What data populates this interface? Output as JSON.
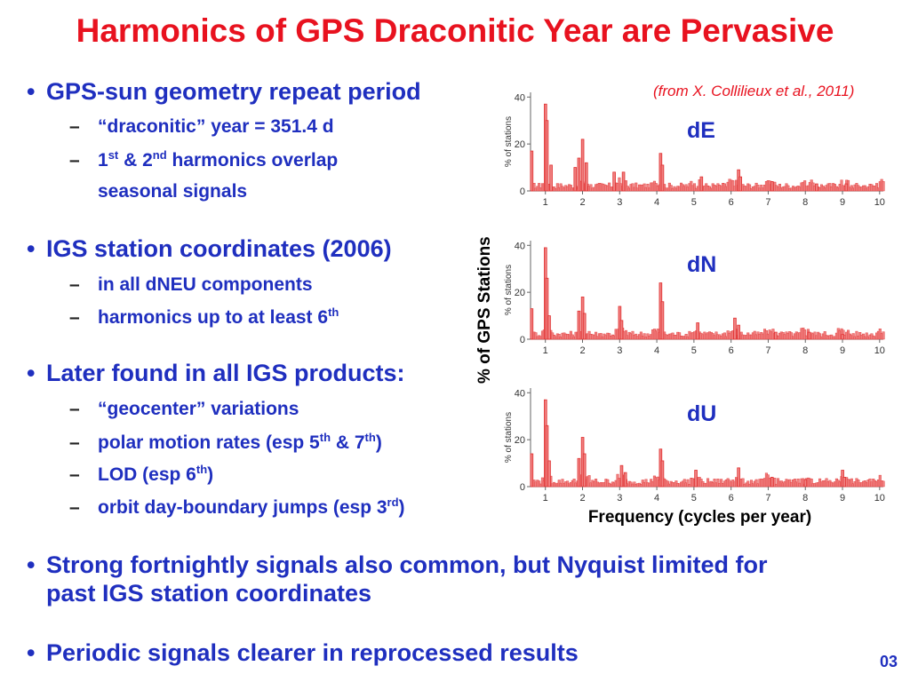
{
  "title": "Harmonics of GPS Draconitic Year are Pervasive",
  "bullets": {
    "b1": "GPS-sun geometry repeat period",
    "b1_s1": "“draconitic” year = 351.4 d",
    "b1_s2_a": "1",
    "b1_s2_sup1": "st",
    "b1_s2_b": " & 2",
    "b1_s2_sup2": "nd",
    "b1_s2_c": " harmonics overlap",
    "b1_s2_cont": "seasonal signals",
    "b2": "IGS station coordinates (2006)",
    "b2_s1": "in all dNEU components",
    "b2_s2_a": "harmonics up to at least 6",
    "b2_s2_sup": "th",
    "b3": "Later found in all IGS products:",
    "b3_s1": "“geocenter” variations",
    "b3_s2_a": "polar motion rates (esp 5",
    "b3_s2_sup1": "th",
    "b3_s2_b": " & 7",
    "b3_s2_sup2": "th",
    "b3_s2_c": ")",
    "b3_s3_a": "LOD (esp 6",
    "b3_s3_sup": "th",
    "b3_s3_b": ")",
    "b3_s4_a": "orbit day-boundary jumps (esp 3",
    "b3_s4_sup": "rd",
    "b3_s4_b": ")",
    "b4_l1": "Strong fortnightly signals also common, but Nyquist limited for",
    "b4_l2": "past IGS station coordinates",
    "b5": "Periodic signals clearer in reprocessed results"
  },
  "credit": "(from X. Collilieux et al., 2011)",
  "page_number": "03",
  "colors": {
    "title": "#e8121f",
    "text": "#1f2fbf",
    "bars": "#f08080",
    "bar_outline": "#e03030"
  },
  "chart_data": [
    {
      "type": "bar",
      "title": "dE",
      "xlabel": "Frequency (cycles per year)",
      "ylabel": "% of GPS Stations",
      "panel_ylabel": "% of stations",
      "xlim": [
        0.6,
        10.1
      ],
      "ylim": [
        0,
        42
      ],
      "xticks": [
        "1",
        "2",
        "3",
        "4",
        "5",
        "6",
        "7",
        "8",
        "9",
        "10"
      ],
      "yticks": [
        "0",
        "20",
        "40"
      ],
      "peaks": [
        {
          "x": 1.0,
          "y": 37
        },
        {
          "x": 1.04,
          "y": 30
        },
        {
          "x": 0.63,
          "y": 17
        },
        {
          "x": 1.15,
          "y": 11
        },
        {
          "x": 1.8,
          "y": 10
        },
        {
          "x": 1.9,
          "y": 14
        },
        {
          "x": 2.0,
          "y": 22
        },
        {
          "x": 2.1,
          "y": 12
        },
        {
          "x": 2.85,
          "y": 8
        },
        {
          "x": 3.1,
          "y": 8
        },
        {
          "x": 4.1,
          "y": 16
        },
        {
          "x": 4.15,
          "y": 11
        },
        {
          "x": 5.2,
          "y": 6
        },
        {
          "x": 6.2,
          "y": 9
        },
        {
          "x": 6.25,
          "y": 6
        },
        {
          "x": 7.1,
          "y": 4
        },
        {
          "x": 8.3,
          "y": 3
        },
        {
          "x": 9.1,
          "y": 3
        }
      ]
    },
    {
      "type": "bar",
      "title": "dN",
      "xlabel": "Frequency (cycles per year)",
      "ylabel": "% of GPS Stations",
      "panel_ylabel": "% of stations",
      "xlim": [
        0.6,
        10.1
      ],
      "ylim": [
        0,
        42
      ],
      "xticks": [
        "1",
        "2",
        "3",
        "4",
        "5",
        "6",
        "7",
        "8",
        "9",
        "10"
      ],
      "yticks": [
        "0",
        "20",
        "40"
      ],
      "peaks": [
        {
          "x": 1.0,
          "y": 39
        },
        {
          "x": 1.04,
          "y": 26
        },
        {
          "x": 0.63,
          "y": 13
        },
        {
          "x": 1.1,
          "y": 10
        },
        {
          "x": 1.9,
          "y": 12
        },
        {
          "x": 2.0,
          "y": 18
        },
        {
          "x": 2.05,
          "y": 11
        },
        {
          "x": 3.0,
          "y": 14
        },
        {
          "x": 3.05,
          "y": 8
        },
        {
          "x": 4.1,
          "y": 24
        },
        {
          "x": 4.15,
          "y": 16
        },
        {
          "x": 5.1,
          "y": 7
        },
        {
          "x": 6.1,
          "y": 9
        },
        {
          "x": 6.2,
          "y": 6
        },
        {
          "x": 7.2,
          "y": 3
        },
        {
          "x": 8.1,
          "y": 3
        },
        {
          "x": 9.0,
          "y": 2
        }
      ]
    },
    {
      "type": "bar",
      "title": "dU",
      "xlabel": "Frequency (cycles per year)",
      "ylabel": "% of GPS Stations",
      "panel_ylabel": "% of stations",
      "xlim": [
        0.6,
        10.1
      ],
      "ylim": [
        0,
        42
      ],
      "xticks": [
        "1",
        "2",
        "3",
        "4",
        "5",
        "6",
        "7",
        "8",
        "9",
        "10"
      ],
      "yticks": [
        "0",
        "20",
        "40"
      ],
      "peaks": [
        {
          "x": 1.0,
          "y": 37
        },
        {
          "x": 1.04,
          "y": 26
        },
        {
          "x": 0.63,
          "y": 14
        },
        {
          "x": 1.1,
          "y": 11
        },
        {
          "x": 1.9,
          "y": 12
        },
        {
          "x": 2.0,
          "y": 21
        },
        {
          "x": 2.05,
          "y": 14
        },
        {
          "x": 3.05,
          "y": 9
        },
        {
          "x": 3.15,
          "y": 6
        },
        {
          "x": 4.1,
          "y": 16
        },
        {
          "x": 4.15,
          "y": 11
        },
        {
          "x": 5.05,
          "y": 7
        },
        {
          "x": 6.2,
          "y": 8
        },
        {
          "x": 7.1,
          "y": 4
        },
        {
          "x": 8.0,
          "y": 3
        },
        {
          "x": 9.0,
          "y": 7
        },
        {
          "x": 9.05,
          "y": 4
        }
      ]
    }
  ]
}
